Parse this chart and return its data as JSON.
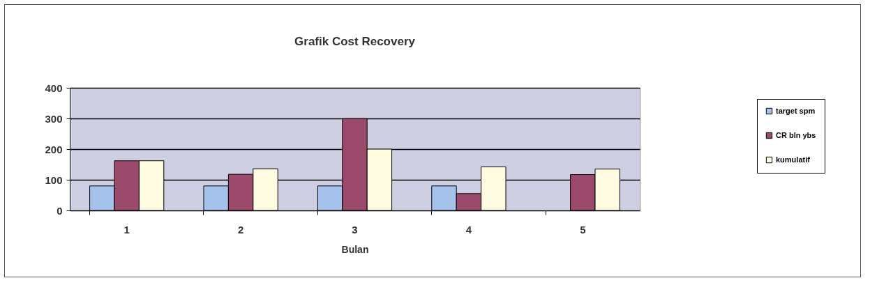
{
  "chart_data": {
    "type": "bar",
    "title": "Grafik Cost Recovery",
    "xlabel": "Bulan",
    "categories": [
      "1",
      "2",
      "3",
      "4",
      "5"
    ],
    "series": [
      {
        "name": "target spm",
        "color": "#a4c2ec",
        "values": [
          80,
          80,
          80,
          80,
          null
        ]
      },
      {
        "name": "CR bln ybs",
        "color": "#9c4a6c",
        "values": [
          162,
          118,
          300,
          55,
          117
        ]
      },
      {
        "name": "kumulatif",
        "color": "#fffbe0",
        "values": [
          162,
          136,
          200,
          142,
          135
        ]
      }
    ],
    "ylim": [
      0,
      400
    ],
    "yticks": [
      0,
      100,
      200,
      300,
      400
    ],
    "grid": "y",
    "legend": "right"
  }
}
